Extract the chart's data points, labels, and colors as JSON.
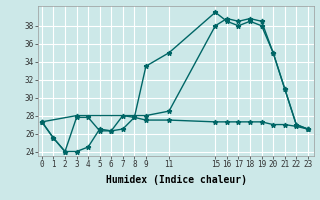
{
  "background_color": "#cce8e8",
  "grid_color": "#ffffff",
  "line_color": "#006666",
  "xlabel": "Humidex (Indice chaleur)",
  "yticks": [
    24,
    26,
    28,
    30,
    32,
    34,
    36,
    38
  ],
  "xtick_vals": [
    0,
    1,
    2,
    3,
    4,
    5,
    6,
    7,
    8,
    9,
    11,
    15,
    16,
    17,
    18,
    19,
    20,
    21,
    22,
    23
  ],
  "xtick_labels": [
    "0",
    "1",
    "2",
    "3",
    "4",
    "5",
    "6",
    "7",
    "8",
    "9",
    "11",
    "15",
    "16",
    "17",
    "18",
    "19",
    "20",
    "21",
    "22",
    "23"
  ],
  "line1_x": [
    0,
    1,
    2,
    3,
    4,
    5,
    6,
    7,
    8,
    9,
    11,
    15,
    16,
    17,
    18,
    19,
    20,
    21,
    22,
    23
  ],
  "line1_y": [
    27.3,
    25.5,
    24.0,
    24.0,
    24.5,
    26.5,
    26.3,
    26.5,
    27.8,
    33.5,
    35.0,
    39.5,
    38.5,
    38.0,
    38.5,
    38.0,
    35.0,
    31.0,
    27.0,
    26.5
  ],
  "line2_x": [
    0,
    1,
    2,
    3,
    4,
    5,
    6,
    7,
    8,
    9,
    11,
    15,
    16,
    17,
    18,
    19,
    20,
    21,
    22,
    23
  ],
  "line2_y": [
    27.3,
    25.5,
    24.0,
    27.8,
    27.8,
    26.3,
    26.3,
    28.0,
    27.8,
    27.5,
    27.5,
    27.3,
    27.3,
    27.3,
    27.3,
    27.3,
    27.0,
    27.0,
    26.8,
    26.5
  ],
  "line3_x": [
    0,
    3,
    9,
    11,
    15,
    16,
    17,
    18,
    19,
    20,
    21,
    22,
    23
  ],
  "line3_y": [
    27.3,
    28.0,
    28.0,
    28.5,
    38.0,
    38.8,
    38.5,
    38.8,
    38.5,
    35.0,
    31.0,
    27.0,
    26.5
  ],
  "ylim": [
    23.5,
    40.2
  ],
  "xlim": [
    -0.3,
    23.5
  ],
  "marker": "*",
  "markersize": 3.5,
  "linewidth": 1.0,
  "tick_fontsize": 5.5,
  "xlabel_fontsize": 7.0
}
